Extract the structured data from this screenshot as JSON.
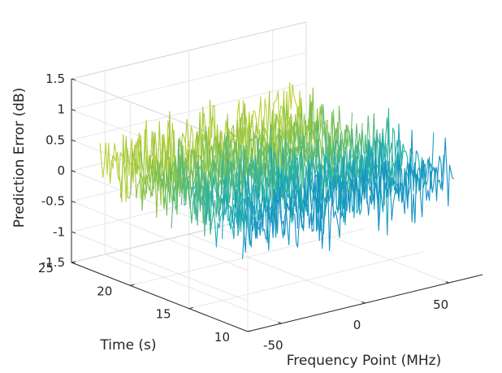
{
  "chart_data": {
    "type": "3d-waterfall",
    "title": "",
    "xlabel": "Frequency Point (MHz)",
    "ylabel": "Time (s)",
    "zlabel": "Prediction Error (dB)",
    "xlim": [
      -70,
      70
    ],
    "ylim": [
      10,
      25
    ],
    "zlim": [
      -1.5,
      1.5
    ],
    "xticks": [
      -50,
      0,
      50
    ],
    "yticks": [
      10,
      15,
      20,
      25
    ],
    "zticks": [
      -1.5,
      -1,
      -0.5,
      0,
      0.5,
      1,
      1.5
    ],
    "xtick_labels": [
      "-50",
      "0",
      "50"
    ],
    "ytick_labels": [
      "10",
      "15",
      "20",
      "25"
    ],
    "ztick_labels": [
      "-1.5",
      "-1",
      "-0.5",
      "0",
      "0.5",
      "1",
      "1.5"
    ],
    "grid": true,
    "colormap": "parula",
    "series_count": 16,
    "points_per_series": 140,
    "error_range": [
      -1.5,
      1.5
    ],
    "colors": {
      "axis": "#262626",
      "grid": "#e6e6e6",
      "low": "#3a62e6",
      "mid": "#22b1c2",
      "high": "#e8e23b"
    }
  }
}
